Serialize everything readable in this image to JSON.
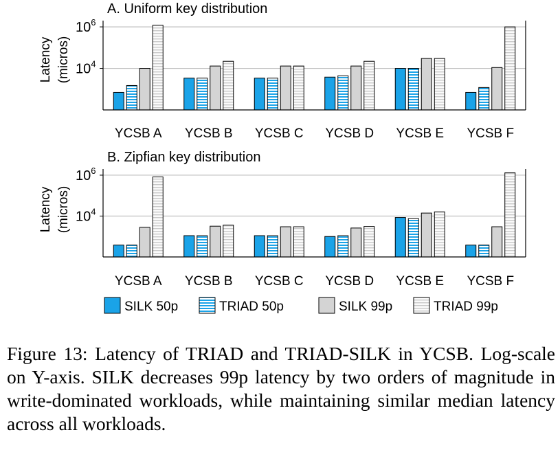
{
  "colors": {
    "silk_50p": "#1aa3e8",
    "triad_50p_fill": "#ffffff",
    "triad_50p_stripe": "#1aa3e8",
    "silk_99p": "#d4d4d4",
    "triad_99p_fill": "#fbfbfb",
    "triad_99p_stripe": "#c8c8c8",
    "grid": "#bfbfbf",
    "axis": "#000000"
  },
  "legend": {
    "silk_50p": "SILK 50p",
    "triad_50p": "TRIAD 50p",
    "silk_99p": "SILK 99p",
    "triad_99p": "TRIAD 99p"
  },
  "caption": "Figure 13: Latency of TRIAD and TRIAD-SILK in YCSB. Log-scale on Y-axis.  SILK decreases 99p latency by two orders of magnitude in write-dominated workloads, while maintaining similar median latency across all workloads.",
  "chart_data": [
    {
      "type": "bar",
      "title": "A. Uniform key distribution",
      "ylabel_line1": "Latency",
      "ylabel_line2": "(micros)",
      "yscale": "log",
      "ylim": [
        100,
        2000000
      ],
      "yticks": [
        {
          "value": 1000000,
          "base": "10",
          "exp": "6"
        },
        {
          "value": 10000,
          "base": "10",
          "exp": "4"
        }
      ],
      "grid": true,
      "categories": [
        "YCSB A",
        "YCSB B",
        "YCSB C",
        "YCSB D",
        "YCSB E",
        "YCSB F"
      ],
      "series": [
        {
          "name": "SILK 50p",
          "values": [
            700,
            3400,
            3400,
            3800,
            10000,
            700
          ]
        },
        {
          "name": "TRIAD 50p",
          "values": [
            1500,
            3400,
            3400,
            4400,
            10000,
            1200
          ]
        },
        {
          "name": "SILK 99p",
          "values": [
            10000,
            13000,
            13000,
            13000,
            30000,
            11000
          ]
        },
        {
          "name": "TRIAD 99p",
          "values": [
            1200000,
            22000,
            13000,
            22000,
            30000,
            1000000
          ]
        }
      ]
    },
    {
      "type": "bar",
      "title": "B. Zipfian key distribution",
      "ylabel_line1": "Latency",
      "ylabel_line2": "(micros)",
      "yscale": "log",
      "ylim": [
        100,
        2000000
      ],
      "yticks": [
        {
          "value": 1000000,
          "base": "10",
          "exp": "6"
        },
        {
          "value": 10000,
          "base": "10",
          "exp": "4"
        }
      ],
      "grid": true,
      "categories": [
        "YCSB A",
        "YCSB B",
        "YCSB C",
        "YCSB D",
        "YCSB E",
        "YCSB F"
      ],
      "series": [
        {
          "name": "SILK 50p",
          "values": [
            380,
            1100,
            1100,
            1000,
            8500,
            380
          ]
        },
        {
          "name": "TRIAD 50p",
          "values": [
            380,
            1100,
            1100,
            1100,
            7500,
            380
          ]
        },
        {
          "name": "SILK 99p",
          "values": [
            2800,
            3200,
            3000,
            2600,
            14000,
            3000
          ]
        },
        {
          "name": "TRIAD 99p",
          "values": [
            820000,
            3600,
            3000,
            3100,
            16000,
            1300000
          ]
        }
      ]
    }
  ]
}
